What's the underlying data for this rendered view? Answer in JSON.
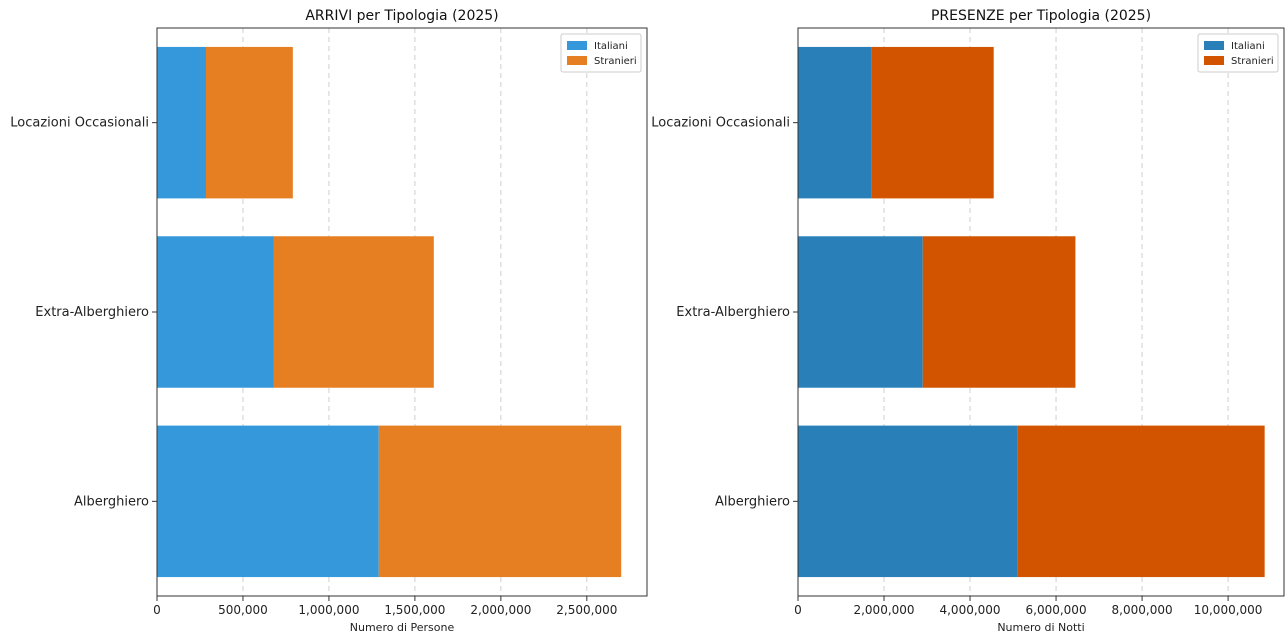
{
  "chart_data": [
    {
      "type": "bar",
      "orientation": "horizontal",
      "stacked": true,
      "title": "ARRIVI per Tipologia (2025)",
      "xlabel": "Numero di Persone",
      "ylabel": "",
      "categories": [
        "Alberghiero",
        "Extra-Alberghiero",
        "Locazioni Occasionali"
      ],
      "series": [
        {
          "name": "Italiani",
          "values": [
            1290000,
            680000,
            285000
          ],
          "color": "#3498db"
        },
        {
          "name": "Stranieri",
          "values": [
            1410000,
            930000,
            505000
          ],
          "color": "#e67e22"
        }
      ],
      "xlim": [
        0,
        2850000
      ],
      "xticks": [
        0,
        500000,
        1000000,
        1500000,
        2000000,
        2500000
      ],
      "xtick_labels": [
        "0",
        "500,000",
        "1,000,000",
        "1,500,000",
        "2,000,000",
        "2,500,000"
      ],
      "grid": "x-dashed",
      "legend": "top-right"
    },
    {
      "type": "bar",
      "orientation": "horizontal",
      "stacked": true,
      "title": "PRESENZE per Tipologia (2025)",
      "xlabel": "Numero di Notti",
      "ylabel": "",
      "categories": [
        "Alberghiero",
        "Extra-Alberghiero",
        "Locazioni Occasionali"
      ],
      "series": [
        {
          "name": "Italiani",
          "values": [
            5100000,
            2900000,
            1700000
          ],
          "color": "#2980b9"
        },
        {
          "name": "Stranieri",
          "values": [
            5750000,
            3550000,
            2850000
          ],
          "color": "#d35400"
        }
      ],
      "xlim": [
        0,
        11300000
      ],
      "xticks": [
        0,
        2000000,
        4000000,
        6000000,
        8000000,
        10000000
      ],
      "xtick_labels": [
        "0",
        "2,000,000",
        "4,000,000",
        "6,000,000",
        "8,000,000",
        "10,000,000"
      ],
      "grid": "x-dashed",
      "legend": "top-right"
    }
  ]
}
